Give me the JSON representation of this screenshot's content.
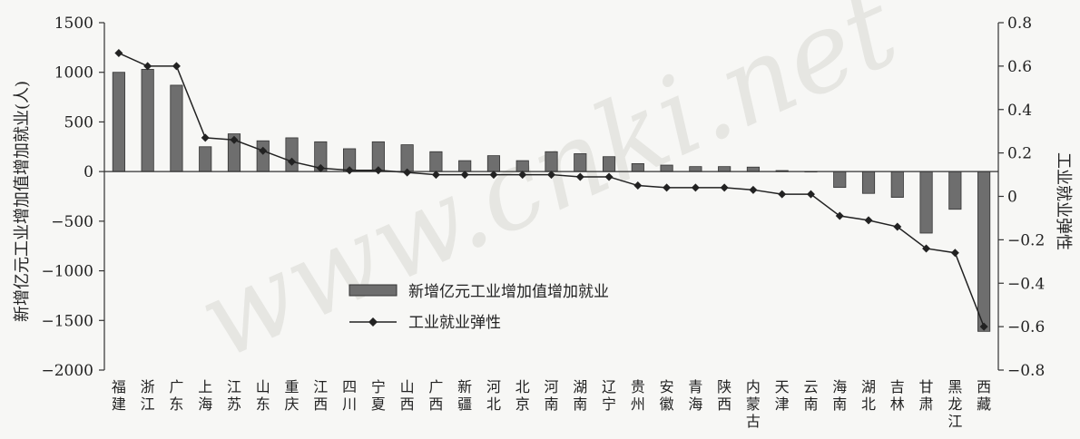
{
  "chart_data": {
    "type": "bar+line",
    "categories": [
      "福建",
      "浙江",
      "广东",
      "上海",
      "江苏",
      "山东",
      "重庆",
      "江西",
      "四川",
      "宁夏",
      "山西",
      "广西",
      "新疆",
      "河北",
      "北京",
      "河南",
      "湖南",
      "辽宁",
      "贵州",
      "安徽",
      "青海",
      "陕西",
      "内蒙古",
      "天津",
      "云南",
      "海南",
      "湖北",
      "吉林",
      "甘肃",
      "黑龙江",
      "西藏"
    ],
    "series": [
      {
        "name": "新增亿元工业增加值增加就业",
        "type": "bar",
        "axis": "left",
        "color": "#6e6e6e",
        "values": [
          1000,
          1030,
          870,
          250,
          380,
          310,
          340,
          300,
          230,
          300,
          270,
          200,
          110,
          160,
          110,
          200,
          180,
          150,
          80,
          65,
          50,
          50,
          45,
          10,
          0,
          -160,
          -220,
          -260,
          -620,
          -380,
          -1610
        ]
      },
      {
        "name": "工业就业弹性",
        "type": "line",
        "axis": "right",
        "color": "#222222",
        "values": [
          0.66,
          0.6,
          0.6,
          0.27,
          0.26,
          0.21,
          0.16,
          0.13,
          0.12,
          0.12,
          0.11,
          0.1,
          0.1,
          0.1,
          0.1,
          0.1,
          0.09,
          0.09,
          0.05,
          0.04,
          0.04,
          0.04,
          0.03,
          0.01,
          0.01,
          -0.09,
          -0.11,
          -0.14,
          -0.24,
          -0.26,
          -0.6
        ]
      }
    ],
    "y_left": {
      "label": "新增亿元工业增加值增加就业(人)",
      "ylim": [
        -2000,
        1500
      ],
      "ticks": [
        1500,
        1000,
        500,
        0,
        -500,
        -1000,
        -1500,
        -2000
      ],
      "tick_labels": [
        "1500",
        "1000",
        "500",
        "0",
        "−500",
        "−1000",
        "−1500",
        "−2000"
      ]
    },
    "y_right": {
      "label": "工业就业弹性",
      "ylim": [
        -0.8,
        0.8
      ],
      "ticks": [
        0.8,
        0.6,
        0.4,
        0.2,
        0,
        -0.2,
        -0.4,
        -0.6,
        -0.8
      ],
      "tick_labels": [
        "0.8",
        "0.6",
        "0.4",
        "0.2",
        "0",
        "−0.2",
        "−0.4",
        "−0.6",
        "−0.8"
      ]
    },
    "legend_position": "center",
    "grid": false,
    "watermark": "www.cnki.net"
  }
}
